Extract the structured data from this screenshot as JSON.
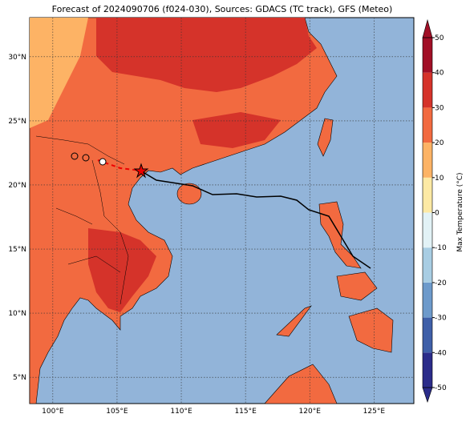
{
  "map": {
    "title": "Forecast of 2024090706 (f024-030), Sources: GDACS (TC track), GFS (Meteo)",
    "lon_range": [
      98.2,
      128.1
    ],
    "lat_range": [
      2.95,
      33.05
    ],
    "lon_ticks": [
      {
        "value": 100,
        "label": "100°E"
      },
      {
        "value": 105,
        "label": "105°E"
      },
      {
        "value": 110,
        "label": "110°E"
      },
      {
        "value": 115,
        "label": "115°E"
      },
      {
        "value": 120,
        "label": "120°E"
      },
      {
        "value": 125,
        "label": "125°E"
      }
    ],
    "lat_ticks": [
      {
        "value": 5,
        "label": "5°N"
      },
      {
        "value": 10,
        "label": "10°N"
      },
      {
        "value": 15,
        "label": "15°N"
      },
      {
        "value": 20,
        "label": "20°N"
      },
      {
        "value": 25,
        "label": "25°N"
      },
      {
        "value": 30,
        "label": "30°N"
      }
    ],
    "colorbar": {
      "label": "Max Temperature (°C)",
      "range": [
        -50,
        50
      ],
      "ticks": [
        -50,
        -40,
        -30,
        -20,
        -10,
        0,
        10,
        20,
        30,
        40,
        50
      ],
      "colors": [
        "#2b2c8a",
        "#3f5fa8",
        "#6d9acb",
        "#a8cde3",
        "#e2f2f6",
        "#fde9a4",
        "#fdb365",
        "#f26a40",
        "#d5332a",
        "#a10f26"
      ]
    }
  }
}
